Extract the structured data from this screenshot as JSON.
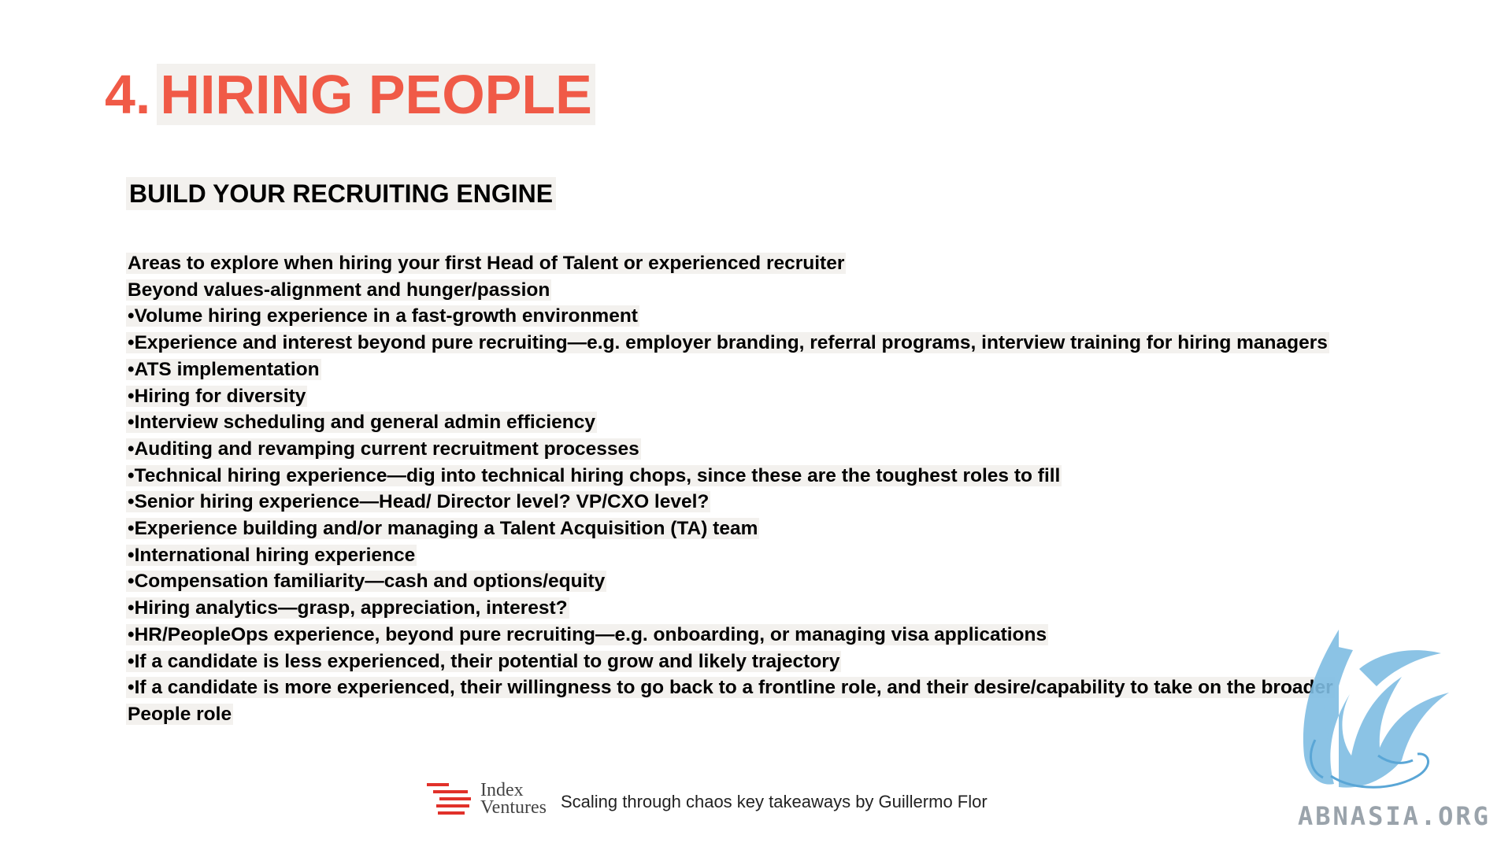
{
  "slide": {
    "title_number": "4.",
    "title_text": "HIRING PEOPLE",
    "subtitle": "BUILD YOUR RECRUITING ENGINE",
    "lines": [
      "Areas to explore when hiring your first Head of Talent or experienced recruiter",
      "Beyond values-alignment and hunger/passion",
      "•Volume hiring experience in a fast-growth environment",
      "•Experience and interest beyond pure recruiting—e.g. employer branding, referral programs, interview training for hiring managers",
      "•ATS implementation",
      "•Hiring for diversity",
      "•Interview scheduling and general admin efficiency",
      "•Auditing and revamping current recruitment processes",
      "•Technical hiring experience—dig into technical hiring chops, since these are the toughest roles to fill",
      "•Senior hiring experience—Head/ Director level? VP/CXO level?",
      "•Experience building and/or managing a Talent Acquisition (TA) team",
      "•International hiring experience",
      "•Compensation familiarity—cash and options/equity",
      "•Hiring analytics—grasp, appreciation, interest?",
      "•HR/PeopleOps experience, beyond pure recruiting—e.g. onboarding, or managing visa applications",
      "•If a candidate is less experienced, their potential to grow and likely trajectory",
      "•If a candidate is more experienced, their willingness to go back to a frontline role, and their desire/capability to take on the broader",
      "People role"
    ]
  },
  "footer": {
    "logo_line1": "Index",
    "logo_line2": "Ventures",
    "caption": "Scaling through chaos key takeaways by Guillermo Flor",
    "logo_icon": "index-ventures-stripes-icon"
  },
  "watermark": {
    "text": "ABNASIA.ORG",
    "icon": "griffin-icon"
  },
  "colors": {
    "title": "#f05a47",
    "highlight": "#f3f1ee",
    "logo_red": "#e1312a",
    "watermark_blue": "#7fbde3",
    "watermark_text": "#9aa3ab"
  }
}
